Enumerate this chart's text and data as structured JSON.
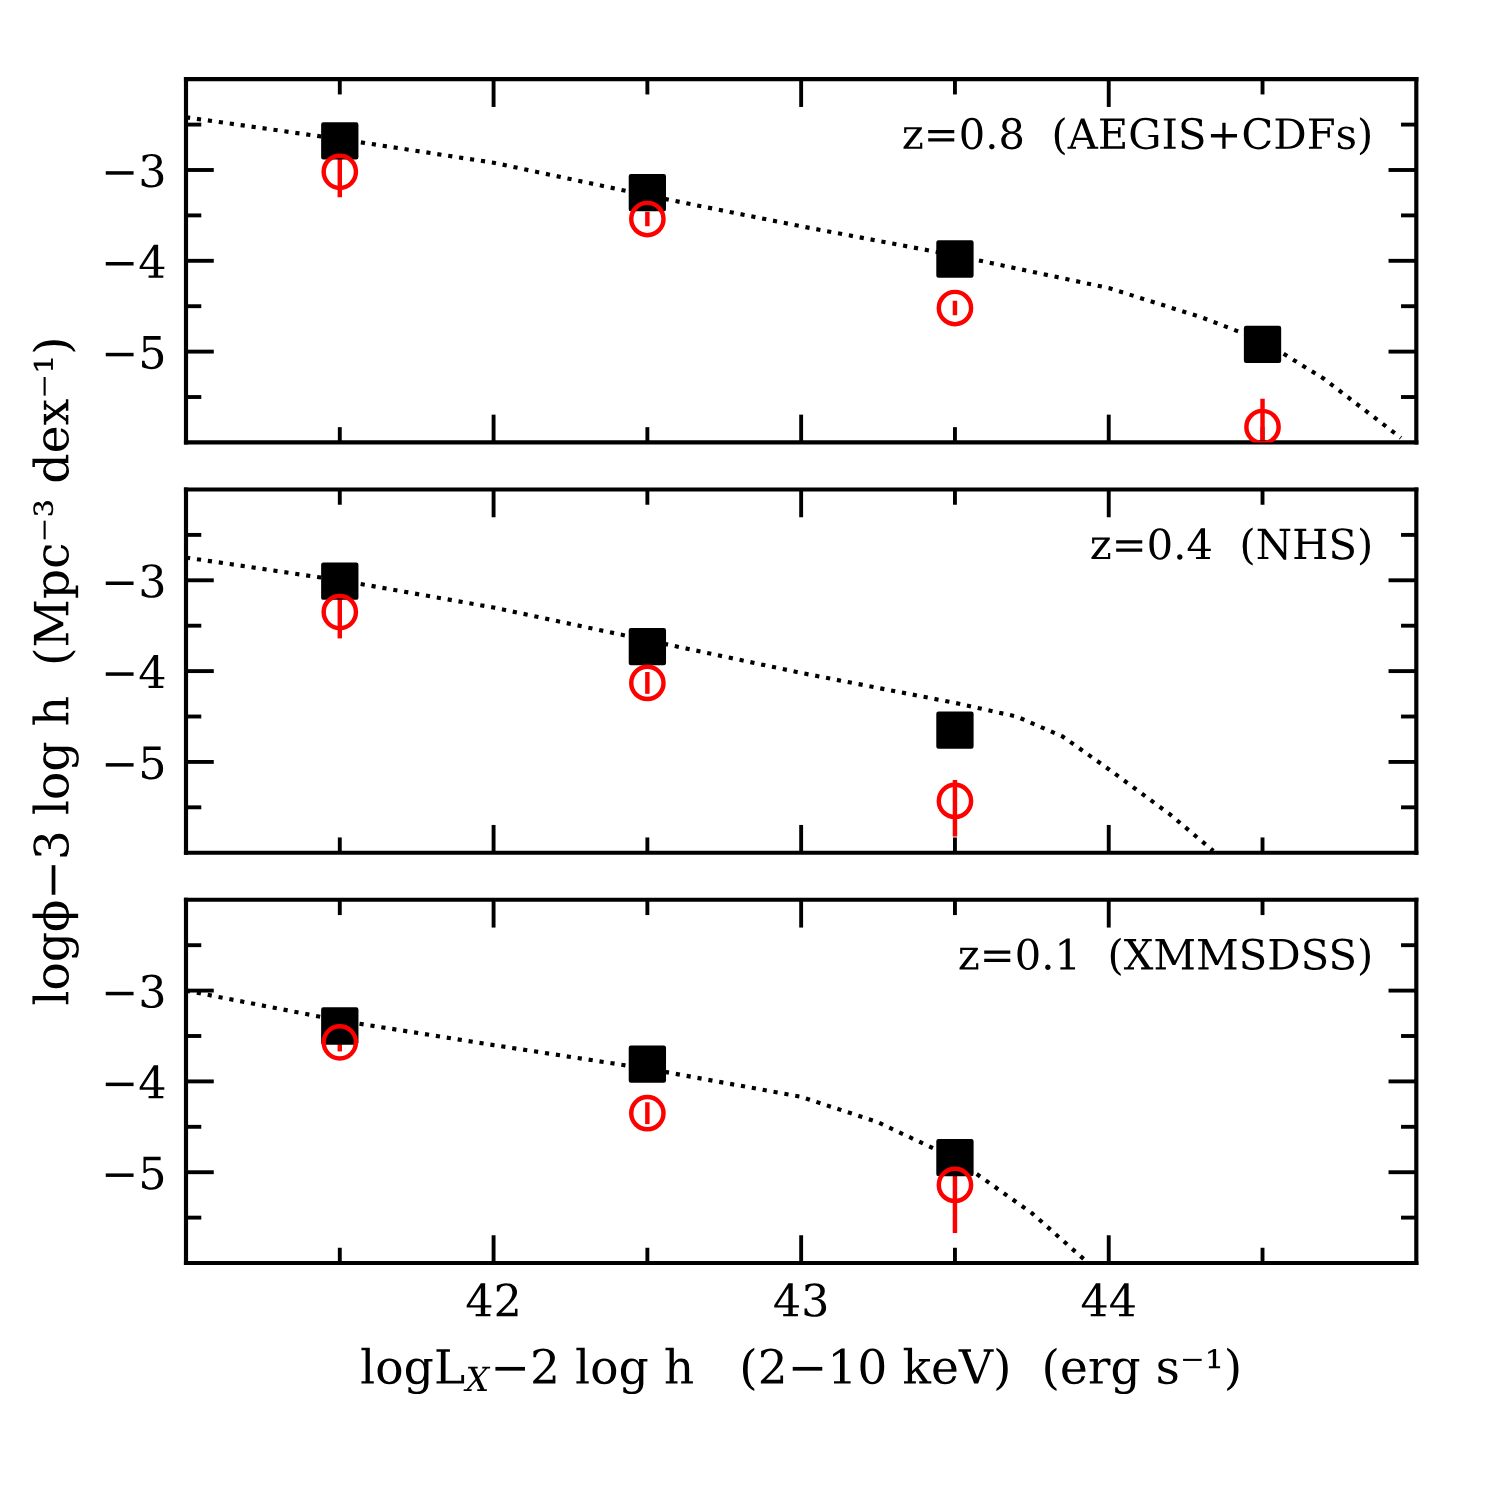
{
  "chart_data": [
    {
      "type": "scatter",
      "annotations": [
        "z=0.8  (AEGIS+CDFs)"
      ],
      "x": [
        41.5,
        42.5,
        43.5,
        44.5
      ],
      "xlim": [
        41,
        45
      ],
      "xticks": [
        {
          "value": 41.5,
          "label": null
        },
        42,
        {
          "value": 42.5,
          "label": null
        },
        43,
        {
          "value": 43.5,
          "label": null
        },
        44,
        {
          "value": 44.5,
          "label": null
        }
      ],
      "ylim": [
        -6,
        -2
      ],
      "yticks": [
        {
          "value": -2.5,
          "label": null
        },
        -3,
        {
          "value": -3.5,
          "label": null
        },
        -4,
        {
          "value": -4.5,
          "label": null
        },
        -5,
        {
          "value": -5.5,
          "label": null
        }
      ],
      "tick_labels": "y",
      "series": [
        {
          "type": "line",
          "color": "#000000",
          "line_style": "dotted",
          "marker": "none",
          "x": [
            41,
            41.5,
            42,
            42.5,
            43,
            43.5,
            44,
            44.3,
            44.5,
            44.7,
            44.95
          ],
          "values": [
            -2.42,
            -2.66,
            -2.92,
            -3.28,
            -3.62,
            -3.94,
            -4.3,
            -4.62,
            -4.88,
            -5.3,
            -5.95
          ]
        },
        {
          "color": "#000000",
          "marker": "square",
          "values": [
            -2.68,
            -3.25,
            -3.98,
            -4.92
          ]
        },
        {
          "color": "#ff0000",
          "marker": "circle",
          "values": [
            -3.02,
            -3.54,
            -4.52,
            -5.83
          ],
          "errors": [
            [
              -3.3,
              -2.84
            ],
            0.08,
            0.08,
            [
              -6.0,
              -5.52
            ]
          ]
        }
      ]
    },
    {
      "type": "scatter",
      "annotations": [
        "z=0.4  (NHS)"
      ],
      "ylabel": "logϕ−3 log h  (Mpc⁻³ dex⁻¹)",
      "x": [
        41.5,
        42.5,
        43.5
      ],
      "xlim": [
        41,
        45
      ],
      "xticks": [
        {
          "value": 41.5,
          "label": null
        },
        42,
        {
          "value": 42.5,
          "label": null
        },
        43,
        {
          "value": 43.5,
          "label": null
        },
        44,
        {
          "value": 44.5,
          "label": null
        }
      ],
      "ylim": [
        -6,
        -2
      ],
      "yticks": [
        {
          "value": -2.5,
          "label": null
        },
        -3,
        {
          "value": -3.5,
          "label": null
        },
        -4,
        {
          "value": -4.5,
          "label": null
        },
        -5,
        {
          "value": -5.5,
          "label": null
        }
      ],
      "tick_labels": "y",
      "series": [
        {
          "type": "line",
          "color": "#000000",
          "line_style": "dotted",
          "marker": "none",
          "x": [
            41,
            41.5,
            42,
            42.5,
            43,
            43.5,
            43.7,
            43.85,
            44,
            44.2,
            44.34
          ],
          "values": [
            -2.75,
            -3.0,
            -3.3,
            -3.66,
            -4.02,
            -4.35,
            -4.5,
            -4.72,
            -5.08,
            -5.58,
            -5.98
          ]
        },
        {
          "color": "#000000",
          "marker": "square",
          "values": [
            -3.01,
            -3.73,
            -4.65
          ]
        },
        {
          "color": "#ff0000",
          "marker": "circle",
          "values": [
            -3.35,
            -4.13,
            -5.43
          ],
          "errors": [
            [
              -3.64,
              -3.16
            ],
            0.12,
            [
              -5.82,
              -5.2
            ]
          ]
        }
      ]
    },
    {
      "type": "scatter",
      "annotations": [
        "z=0.1  (XMMSDSS)"
      ],
      "xlabel": "logL$_{X}$−2 log h   (2−10 keV)  (erg s⁻¹)",
      "x": [
        41.5,
        42.5,
        43.5
      ],
      "xlim": [
        41,
        45
      ],
      "xticks": [
        {
          "value": 41.5,
          "label": null
        },
        42,
        {
          "value": 42.5,
          "label": null
        },
        43,
        {
          "value": 43.5,
          "label": null
        },
        44,
        {
          "value": 44.5,
          "label": null
        }
      ],
      "ylim": [
        -6,
        -2
      ],
      "yticks": [
        {
          "value": -2.5,
          "label": null
        },
        -3,
        {
          "value": -3.5,
          "label": null
        },
        -4,
        {
          "value": -4.5,
          "label": null
        },
        -5,
        {
          "value": -5.5,
          "label": null
        }
      ],
      "series": [
        {
          "type": "line",
          "color": "#000000",
          "line_style": "dotted",
          "marker": "none",
          "x": [
            41,
            41.5,
            42,
            42.5,
            43,
            43.25,
            43.5,
            43.75,
            43.93
          ],
          "values": [
            -3.0,
            -3.33,
            -3.6,
            -3.86,
            -4.17,
            -4.45,
            -4.85,
            -5.45,
            -5.99
          ]
        },
        {
          "color": "#000000",
          "marker": "square",
          "values": [
            -3.39,
            -3.81,
            -4.84
          ]
        },
        {
          "color": "#ff0000",
          "marker": "circle",
          "values": [
            -3.57,
            -4.35,
            -5.14
          ],
          "errors": [
            0.1,
            0.12,
            [
              -5.67,
              -4.92
            ]
          ]
        }
      ]
    }
  ]
}
